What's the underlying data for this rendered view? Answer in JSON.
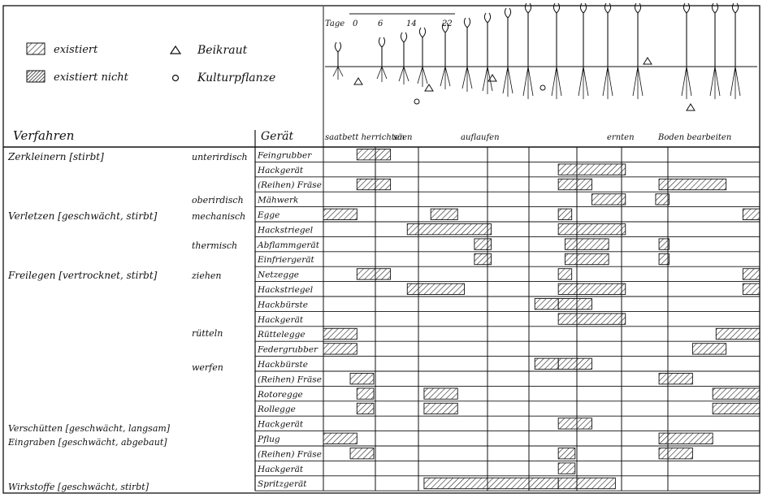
{
  "legend": [
    {
      "label": "existiert",
      "pattern": "hatch"
    },
    {
      "label": "existiert nicht",
      "pattern": "dense-hatch"
    },
    {
      "label": "Beikraut",
      "symbol": "triangle"
    },
    {
      "label": "Kulturpflanze",
      "symbol": "circle"
    }
  ],
  "timeline": {
    "label": "Tage",
    "ticks": [
      "0",
      "6",
      "14",
      "22"
    ]
  },
  "headers": {
    "verfahren": "Verfahren",
    "geraet": "Gerät",
    "phases": [
      "saatbett herrichten",
      "säen",
      "auflaufen",
      "ernten",
      "Boden bearbeiten"
    ]
  },
  "procedures": [
    "Zerkleinern [stirbt]",
    "Verletzen [geschwächt, stirbt]",
    "Freilegen [vertrocknet, stirbt]",
    "Verschütten [geschwächt, langsam]",
    "Eingraben [geschwächt, abgebaut]",
    "Wirkstoffe [geschwächt, stirbt]"
  ],
  "modes": [
    "unterirdisch",
    "oberirdisch",
    "mechanisch",
    "thermisch",
    "ziehen",
    "rütteln",
    "werfen"
  ],
  "rows": [
    {
      "geraet": "Feingrubber",
      "bars": [
        [
          1,
          2
        ]
      ]
    },
    {
      "geraet": "Hackgerät",
      "bars": [
        [
          7,
          9
        ]
      ]
    },
    {
      "geraet": "(Reihen) Fräse",
      "bars": [
        [
          1,
          2
        ],
        [
          7,
          8
        ],
        [
          10,
          12
        ]
      ]
    },
    {
      "geraet": "Mähwerk",
      "bars": [
        [
          8,
          9
        ],
        [
          9.9,
          10.3
        ]
      ]
    },
    {
      "geraet": "Egge",
      "bars": [
        [
          0,
          1
        ],
        [
          3.2,
          4
        ],
        [
          7,
          7.4
        ],
        [
          12.5,
          13
        ]
      ]
    },
    {
      "geraet": "Hackstriegel",
      "bars": [
        [
          2.5,
          5
        ],
        [
          7,
          9
        ]
      ]
    },
    {
      "geraet": "Abflammgerät",
      "bars": [
        [
          4.5,
          5
        ],
        [
          7.2,
          8.5
        ],
        [
          10,
          10.3
        ]
      ]
    },
    {
      "geraet": "Einfriergerät",
      "bars": [
        [
          4.5,
          5
        ],
        [
          7.2,
          8.5
        ],
        [
          10,
          10.3
        ]
      ]
    },
    {
      "geraet": "Netzegge",
      "bars": [
        [
          1,
          2
        ],
        [
          7,
          7.4
        ],
        [
          12.5,
          13
        ]
      ]
    },
    {
      "geraet": "Hackstriegel",
      "bars": [
        [
          2.5,
          4.2
        ],
        [
          7,
          9
        ],
        [
          12.5,
          13
        ]
      ]
    },
    {
      "geraet": "Hackbürste",
      "bars": [
        [
          6.3,
          7
        ],
        [
          7,
          8
        ]
      ]
    },
    {
      "geraet": "Hackgerät",
      "bars": [
        [
          7,
          9
        ]
      ]
    },
    {
      "geraet": "Rüttelegge",
      "bars": [
        [
          0,
          1
        ],
        [
          11.7,
          13
        ]
      ]
    },
    {
      "geraet": "Federgrubber",
      "bars": [
        [
          0,
          1
        ],
        [
          11,
          12
        ]
      ]
    },
    {
      "geraet": "Hackbürste",
      "bars": [
        [
          6.3,
          7
        ],
        [
          7,
          8
        ]
      ]
    },
    {
      "geraet": "(Reihen) Fräse",
      "bars": [
        [
          0.8,
          1.5
        ],
        [
          10,
          11
        ]
      ]
    },
    {
      "geraet": "Rotoregge",
      "bars": [
        [
          1,
          1.5
        ],
        [
          3,
          4
        ],
        [
          11.6,
          13
        ]
      ]
    },
    {
      "geraet": "Rollegge",
      "bars": [
        [
          1,
          1.5
        ],
        [
          3,
          4
        ],
        [
          11.6,
          13
        ]
      ]
    },
    {
      "geraet": "Hackgerät",
      "bars": [
        [
          7,
          8
        ]
      ]
    },
    {
      "geraet": "Pflug",
      "bars": [
        [
          0,
          1
        ],
        [
          10,
          11.6
        ]
      ]
    },
    {
      "geraet": "(Reihen) Fräse",
      "bars": [
        [
          0.8,
          1.5
        ],
        [
          7,
          7.5
        ],
        [
          10,
          11
        ]
      ]
    },
    {
      "geraet": "Hackgerät",
      "bars": [
        [
          7,
          7.5
        ]
      ]
    },
    {
      "geraet": "Spritzgerät",
      "bars": [
        [
          3,
          7
        ],
        [
          7,
          8.7
        ]
      ]
    }
  ]
}
